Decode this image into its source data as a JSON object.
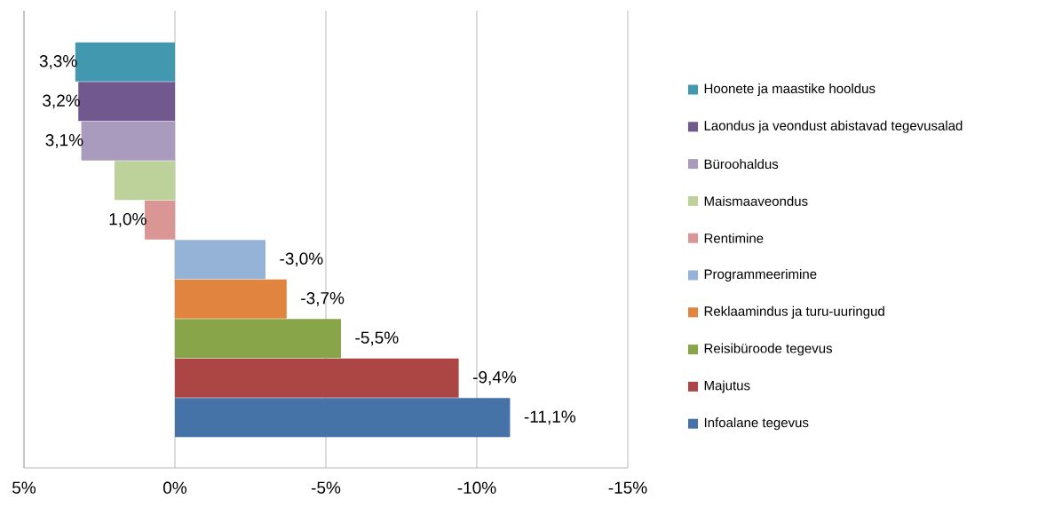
{
  "chart_data": {
    "type": "bar",
    "orientation": "horizontal",
    "categories": [
      null
    ],
    "series": [
      {
        "name": "Hoonete ja maastike hooldus",
        "color": "#4198af",
        "values": [
          3.3
        ],
        "value_labels": [
          "3,3%"
        ]
      },
      {
        "name": "Laondus ja veondust abistavad tegevusalad",
        "color": "#71588f",
        "values": [
          3.2
        ],
        "value_labels": [
          "3,2%"
        ]
      },
      {
        "name": "Büroohaldus",
        "color": "#a99bbd",
        "values": [
          3.1
        ],
        "value_labels": [
          "3,1%"
        ]
      },
      {
        "name": "Maismaaveondus",
        "color": "#bcd29a",
        "values": [
          2.0
        ],
        "value_labels": [
          null
        ]
      },
      {
        "name": "Rentimine",
        "color": "#d99694",
        "values": [
          1.0
        ],
        "value_labels": [
          "1,0%"
        ]
      },
      {
        "name": "Programmeerimine",
        "color": "#95b3d7",
        "values": [
          -3.0
        ],
        "value_labels": [
          "-3,0%"
        ]
      },
      {
        "name": "Reklaamindus ja turu-uuringud",
        "color": "#e0843f",
        "values": [
          -3.7
        ],
        "value_labels": [
          "-3,7%"
        ]
      },
      {
        "name": "Reisibüroode tegevus",
        "color": "#88a54a",
        "values": [
          -5.5
        ],
        "value_labels": [
          "-5,5%"
        ]
      },
      {
        "name": "Majutus",
        "color": "#ab4644",
        "values": [
          -9.4
        ],
        "value_labels": [
          "-9,4%"
        ]
      },
      {
        "name": "Infoalane tegevus",
        "color": "#4572a7",
        "values": [
          -11.1
        ],
        "value_labels": [
          "-11,1%"
        ]
      }
    ],
    "xlim": [
      5,
      -15
    ],
    "xticks": [
      {
        "value": 5,
        "label": "5%"
      },
      {
        "value": 0,
        "label": "0%"
      },
      {
        "value": -5,
        "label": "-5%"
      },
      {
        "value": -10,
        "label": "-10%"
      },
      {
        "value": -15,
        "label": "-15%"
      }
    ],
    "grid": "x",
    "legend": "right"
  }
}
